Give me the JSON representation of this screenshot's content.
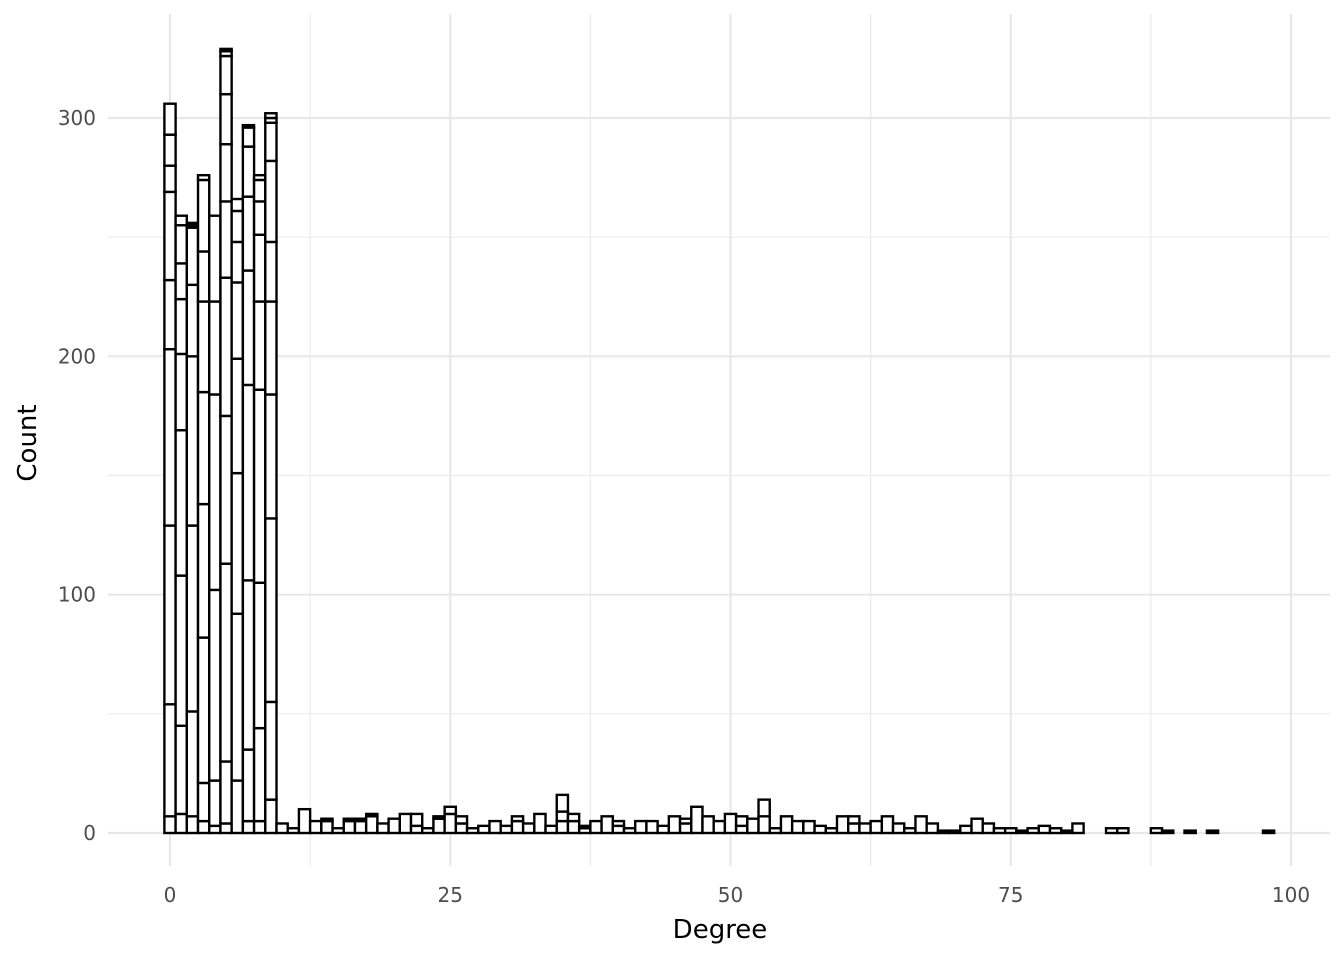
{
  "chart_data": {
    "type": "bar",
    "title": "",
    "xlabel": "Degree",
    "ylabel": "Count",
    "xlim": [
      -5,
      103
    ],
    "ylim": [
      -12,
      340
    ],
    "x_ticks": [
      0,
      25,
      50,
      75,
      100
    ],
    "x_tick_labels": [
      "0",
      "25",
      "50",
      "75",
      "100"
    ],
    "y_ticks": [
      0,
      100,
      200,
      300
    ],
    "y_tick_labels": [
      "0",
      "100",
      "200",
      "300"
    ],
    "grid": true,
    "legend": "none",
    "bar_fill": "#ffffff",
    "bar_outline": "#000000",
    "bin_width": 1,
    "stacked": true,
    "bars": [
      {
        "x": 0,
        "segments": [
          7,
          47,
          75,
          74,
          29,
          37,
          11,
          13,
          13
        ]
      },
      {
        "x": 1,
        "segments": [
          8,
          37,
          63,
          61,
          32,
          23,
          15,
          16,
          4
        ]
      },
      {
        "x": 2,
        "segments": [
          7,
          44,
          78,
          71,
          30,
          24,
          1,
          1
        ]
      },
      {
        "x": 3,
        "segments": [
          5,
          16,
          61,
          56,
          47,
          38,
          21,
          30,
          2
        ]
      },
      {
        "x": 4,
        "segments": [
          3,
          19,
          80,
          82,
          39,
          36
        ]
      },
      {
        "x": 5,
        "segments": [
          4,
          26,
          83,
          62,
          58,
          32,
          24,
          21,
          16,
          2,
          1
        ]
      },
      {
        "x": 6,
        "segments": [
          22,
          70,
          59,
          48,
          32,
          17,
          13,
          5
        ]
      },
      {
        "x": 7,
        "segments": [
          5,
          30,
          71,
          82,
          48,
          31,
          21,
          8,
          1
        ]
      },
      {
        "x": 8,
        "segments": [
          5,
          39,
          61,
          81,
          37,
          28,
          14,
          9,
          2
        ]
      },
      {
        "x": 9,
        "segments": [
          14,
          41,
          77,
          52,
          39,
          25,
          34,
          16,
          2,
          2
        ]
      },
      {
        "x": 10,
        "segments": [
          4
        ]
      },
      {
        "x": 11,
        "segments": [
          2
        ]
      },
      {
        "x": 12,
        "segments": [
          10
        ]
      },
      {
        "x": 13,
        "segments": [
          5
        ]
      },
      {
        "x": 14,
        "segments": [
          5,
          1
        ]
      },
      {
        "x": 15,
        "segments": [
          2
        ]
      },
      {
        "x": 16,
        "segments": [
          5,
          1
        ]
      },
      {
        "x": 17,
        "segments": [
          5,
          1
        ]
      },
      {
        "x": 18,
        "segments": [
          7,
          1
        ]
      },
      {
        "x": 19,
        "segments": [
          4
        ]
      },
      {
        "x": 20,
        "segments": [
          6
        ]
      },
      {
        "x": 21,
        "segments": [
          8
        ]
      },
      {
        "x": 22,
        "segments": [
          3,
          5
        ]
      },
      {
        "x": 23,
        "segments": [
          2
        ]
      },
      {
        "x": 24,
        "segments": [
          6,
          1
        ]
      },
      {
        "x": 25,
        "segments": [
          8,
          3
        ]
      },
      {
        "x": 26,
        "segments": [
          4,
          3
        ]
      },
      {
        "x": 27,
        "segments": [
          2
        ]
      },
      {
        "x": 28,
        "segments": [
          3
        ]
      },
      {
        "x": 29,
        "segments": [
          5
        ]
      },
      {
        "x": 30,
        "segments": [
          3
        ]
      },
      {
        "x": 31,
        "segments": [
          5,
          2
        ]
      },
      {
        "x": 32,
        "segments": [
          4
        ]
      },
      {
        "x": 33,
        "segments": [
          8
        ]
      },
      {
        "x": 34,
        "segments": [
          3
        ]
      },
      {
        "x": 35,
        "segments": [
          5,
          4,
          7
        ]
      },
      {
        "x": 36,
        "segments": [
          5,
          3
        ]
      },
      {
        "x": 37,
        "segments": [
          2,
          1
        ]
      },
      {
        "x": 38,
        "segments": [
          5
        ]
      },
      {
        "x": 39,
        "segments": [
          7
        ]
      },
      {
        "x": 40,
        "segments": [
          3,
          2
        ]
      },
      {
        "x": 41,
        "segments": [
          2
        ]
      },
      {
        "x": 42,
        "segments": [
          5
        ]
      },
      {
        "x": 43,
        "segments": [
          5
        ]
      },
      {
        "x": 44,
        "segments": [
          3
        ]
      },
      {
        "x": 45,
        "segments": [
          7
        ]
      },
      {
        "x": 46,
        "segments": [
          4,
          2
        ]
      },
      {
        "x": 47,
        "segments": [
          11
        ]
      },
      {
        "x": 48,
        "segments": [
          7
        ]
      },
      {
        "x": 49,
        "segments": [
          5
        ]
      },
      {
        "x": 50,
        "segments": [
          8
        ]
      },
      {
        "x": 51,
        "segments": [
          3,
          4
        ]
      },
      {
        "x": 52,
        "segments": [
          6
        ]
      },
      {
        "x": 53,
        "segments": [
          7,
          7
        ]
      },
      {
        "x": 54,
        "segments": [
          2
        ]
      },
      {
        "x": 55,
        "segments": [
          7
        ]
      },
      {
        "x": 56,
        "segments": [
          5
        ]
      },
      {
        "x": 57,
        "segments": [
          5
        ]
      },
      {
        "x": 58,
        "segments": [
          3
        ]
      },
      {
        "x": 59,
        "segments": [
          2
        ]
      },
      {
        "x": 60,
        "segments": [
          7
        ]
      },
      {
        "x": 61,
        "segments": [
          4,
          3
        ]
      },
      {
        "x": 62,
        "segments": [
          4
        ]
      },
      {
        "x": 63,
        "segments": [
          5
        ]
      },
      {
        "x": 64,
        "segments": [
          7
        ]
      },
      {
        "x": 65,
        "segments": [
          4
        ]
      },
      {
        "x": 66,
        "segments": [
          2
        ]
      },
      {
        "x": 67,
        "segments": [
          7
        ]
      },
      {
        "x": 68,
        "segments": [
          4
        ]
      },
      {
        "x": 69,
        "segments": [
          1
        ]
      },
      {
        "x": 70,
        "segments": [
          1
        ]
      },
      {
        "x": 71,
        "segments": [
          3
        ]
      },
      {
        "x": 72,
        "segments": [
          6
        ]
      },
      {
        "x": 73,
        "segments": [
          4
        ]
      },
      {
        "x": 74,
        "segments": [
          2
        ]
      },
      {
        "x": 75,
        "segments": [
          2
        ]
      },
      {
        "x": 76,
        "segments": [
          1
        ]
      },
      {
        "x": 77,
        "segments": [
          2
        ]
      },
      {
        "x": 78,
        "segments": [
          3
        ]
      },
      {
        "x": 79,
        "segments": [
          2
        ]
      },
      {
        "x": 80,
        "segments": [
          1
        ]
      },
      {
        "x": 81,
        "segments": [
          4
        ]
      },
      {
        "x": 84,
        "segments": [
          2
        ]
      },
      {
        "x": 85,
        "segments": [
          2
        ]
      },
      {
        "x": 88,
        "segments": [
          2
        ]
      },
      {
        "x": 89,
        "segments": [
          1
        ]
      },
      {
        "x": 91,
        "segments": [
          1
        ]
      },
      {
        "x": 93,
        "segments": [
          1
        ]
      },
      {
        "x": 98,
        "segments": [
          1
        ]
      }
    ]
  }
}
